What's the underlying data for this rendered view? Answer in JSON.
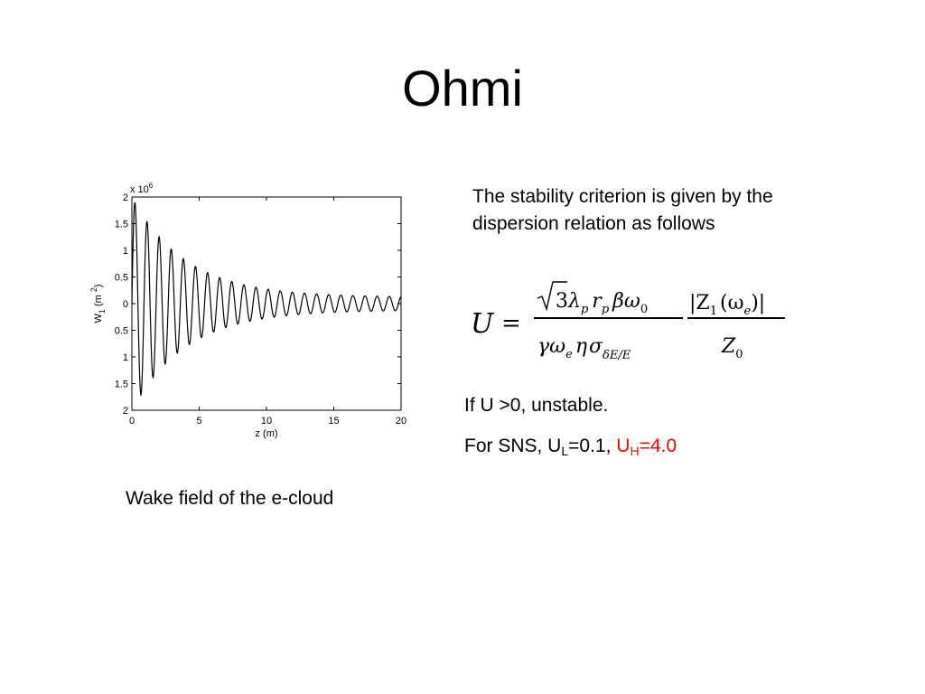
{
  "slide": {
    "title": "Ohmi",
    "criterion_text": "The stability criterion is given by the dispersion relation as follows",
    "condition_text": "If U >0, unstable.",
    "sns": {
      "prefix": "For SNS, U",
      "ul_sub": "L",
      "ul_value": "=0.1, ",
      "uh_main": "U",
      "uh_sub": "H",
      "uh_value": "=4.0",
      "highlight_color": "#ff0000"
    },
    "caption": "Wake field of the e-cloud"
  },
  "formula": {
    "lhs": "U",
    "equals": "=",
    "num1_sqrt": "3",
    "num1_rest": "λ",
    "lambda_sub": "p",
    "r": "r",
    "r_sub": "p",
    "beta": "β",
    "omega": "ω",
    "omega_sub": "0",
    "den1_gamma": "γ",
    "den1_omega": "ω",
    "den1_omega_sub": "e",
    "den1_eta": "η",
    "den1_sigma": "σ",
    "den1_sigma_sub": "δE/E",
    "num2": "|Z",
    "num2_sub": "1",
    "num2_arg": "(ω",
    "num2_arg_sub": "e",
    "num2_close": ")|",
    "den2": "Z",
    "den2_sub": "0"
  },
  "chart_data": {
    "type": "line",
    "title": "",
    "xlabel": "z (m)",
    "ylabel_main": "W",
    "ylabel_sub": "1",
    "ylabel_unit": "(m",
    "ylabel_unit_sup": "2",
    "ylabel_close": ")",
    "y_multiplier": "x 10",
    "y_multiplier_exp": "6",
    "xlim": [
      0,
      20
    ],
    "ylim": [
      -2,
      2
    ],
    "x_ticks": [
      0,
      5,
      10,
      15,
      20
    ],
    "x_tick_labels": [
      "0",
      "5",
      "10",
      "15",
      "20"
    ],
    "y_ticks": [
      2,
      1.5,
      1,
      0.5,
      0,
      -0.5,
      -1,
      -1.5,
      -2
    ],
    "y_tick_labels": [
      "2",
      "1.5",
      "1",
      "0.5",
      "0",
      "0.5",
      "1",
      "1.5",
      "2"
    ],
    "series": [
      {
        "model": {
          "amplitude_start": 2.0,
          "amplitude_floor": 0.12,
          "decay_length": 4.0,
          "wavelength": 0.9,
          "x_start": 0.0,
          "x_end": 20.0,
          "samples": 900
        }
      }
    ],
    "grid": false,
    "line_color": "#000000"
  }
}
